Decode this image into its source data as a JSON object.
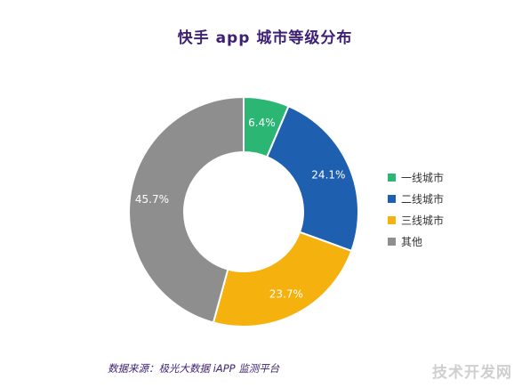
{
  "chart_data": {
    "type": "pie",
    "title": "快手 app 城市等级分布",
    "categories": [
      "一线城市",
      "二线城市",
      "三线城市",
      "其他"
    ],
    "values": [
      6.4,
      24.1,
      23.7,
      45.7
    ],
    "value_labels": [
      "6.4%",
      "24.1%",
      "23.7%",
      "45.7%"
    ],
    "colors": [
      "#2bb673",
      "#1f5fb0",
      "#f5b10e",
      "#8e8e8e"
    ],
    "donut": true,
    "legend_position": "right"
  },
  "source": "数据来源：极光大数据 iAPP 监测平台",
  "watermark": "技术开发网"
}
